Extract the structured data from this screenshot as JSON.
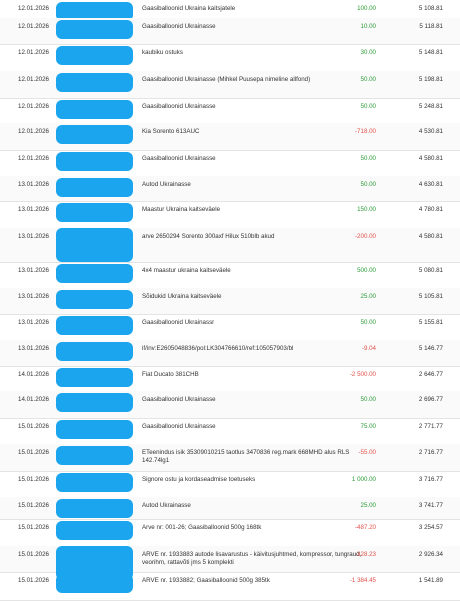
{
  "transactions": [
    {
      "date": "12.01.2026",
      "description": "Gaasiballoonid Ukraina kaitsjatele",
      "amount": "100.00",
      "type": "pos",
      "balance": "5 108.81"
    },
    {
      "date": "12.01.2026",
      "description": "Gaasiballoonid Ukrainasse",
      "amount": "10.00",
      "type": "pos",
      "balance": "5 118.81"
    },
    {
      "date": "12.01.2026",
      "description": "kaubiku ostuks",
      "amount": "30.00",
      "type": "pos",
      "balance": "5 148.81"
    },
    {
      "date": "12.01.2026",
      "description": "Gaasiballoonid Ukrainasse (Mihkel Puusepa nimeline allfond)",
      "amount": "50.00",
      "type": "pos",
      "balance": "5 198.81"
    },
    {
      "date": "12.01.2026",
      "description": "Gaasiballoonid Ukrainasse",
      "amount": "50.00",
      "type": "pos",
      "balance": "5 248.81"
    },
    {
      "date": "12.01.2026",
      "description": "Kia Sorento 613AUC",
      "amount": "-718.00",
      "type": "neg",
      "balance": "4 530.81"
    },
    {
      "date": "12.01.2026",
      "description": "Gaasiballoonid Ukrainasse",
      "amount": "50.00",
      "type": "pos",
      "balance": "4 580.81"
    },
    {
      "date": "13.01.2026",
      "description": "Autod Ukrainasse",
      "amount": "50.00",
      "type": "pos",
      "balance": "4 630.81"
    },
    {
      "date": "13.01.2026",
      "description": "Maastur Ukraina kaitseväele",
      "amount": "150.00",
      "type": "pos",
      "balance": "4 780.81"
    },
    {
      "date": "13.01.2026",
      "description": "arve 2650294 Sorento 300axf Hilux 510blb akud",
      "amount": "-200.00",
      "type": "neg",
      "balance": "4 580.81"
    },
    {
      "date": "13.01.2026",
      "description": "4x4 maastur ukraina kaitseväele",
      "amount": "500.00",
      "type": "pos",
      "balance": "5 080.81"
    },
    {
      "date": "13.01.2026",
      "description": "Sõidukid Ukraina kaitseväele",
      "amount": "25.00",
      "type": "pos",
      "balance": "5 105.81"
    },
    {
      "date": "13.01.2026",
      "description": "Gaasiballoonid Ukrainassr",
      "amount": "50.00",
      "type": "pos",
      "balance": "5 155.81"
    },
    {
      "date": "13.01.2026",
      "description": "if/inv:E2605048836/pol:LK304766610/ref:105057903/bl",
      "amount": "-9.04",
      "type": "neg",
      "balance": "5 146.77"
    },
    {
      "date": "14.01.2026",
      "description": "Fiat Ducato 381CHB",
      "amount": "-2 500.00",
      "type": "neg",
      "balance": "2 646.77"
    },
    {
      "date": "14.01.2026",
      "description": "Gaasiballoonid Ukrainasse",
      "amount": "50.00",
      "type": "pos",
      "balance": "2 696.77"
    },
    {
      "date": "15.01.2026",
      "description": "Gaasiballoonid Ukrainasse",
      "amount": "75.00",
      "type": "pos",
      "balance": "2 771.77"
    },
    {
      "date": "15.01.2026",
      "description": "ETeenindus isik 35309010215 taotlus 3470836 reg.mark 668MHD alus RLS 142.74lg1",
      "amount": "-55.00",
      "type": "neg",
      "balance": "2 716.77"
    },
    {
      "date": "15.01.2026",
      "description": "Signore ostu ja kordaseadmise toetuseks",
      "amount": "1 000.00",
      "type": "pos",
      "balance": "3 716.77"
    },
    {
      "date": "15.01.2026",
      "description": "Autod Ukrainasse",
      "amount": "25.00",
      "type": "pos",
      "balance": "3 741.77"
    },
    {
      "date": "15.01.2026",
      "description": "Arve nr: 001-26; Gaasiballoonid 500g 168tk",
      "amount": "-487.20",
      "type": "neg",
      "balance": "3 254.57"
    },
    {
      "date": "15.01.2026",
      "description": "ARVE nr. 1933883 autode lisavarustus - käivitusjuhtmed, kompressor, tungraud, veorihm, rattavõti jms 5 komplekti",
      "amount": "-328.23",
      "type": "neg",
      "balance": "2 926.34"
    },
    {
      "date": "15.01.2026",
      "description": "ARVE nr. 1933882; Gaasiballoonid 500g 385tk",
      "amount": "-1 384.45",
      "type": "neg",
      "balance": "1 541.89"
    }
  ]
}
